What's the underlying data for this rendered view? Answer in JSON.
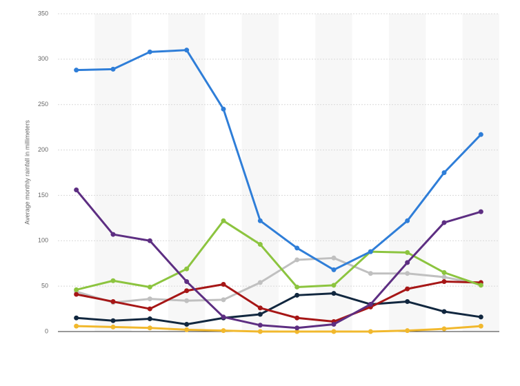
{
  "chart_data": {
    "type": "line",
    "y_label": "Average monthly rainfall in millimeters",
    "categories": [
      null,
      null,
      null,
      null,
      null,
      null,
      null,
      null,
      null,
      null,
      null,
      null
    ],
    "ylim": [
      0,
      350
    ],
    "yticks": [
      0,
      50,
      100,
      150,
      200,
      250,
      300,
      350
    ],
    "grid": true,
    "series": [
      {
        "color": "#f1b82d",
        "values": [
          6,
          5,
          4,
          2,
          1,
          0,
          0,
          0,
          0,
          1,
          3,
          6
        ]
      },
      {
        "color": "#c0c0c0",
        "values": [
          44,
          32,
          36,
          34,
          35,
          54,
          79,
          81,
          64,
          64,
          60,
          52
        ]
      },
      {
        "color": "#11273f",
        "values": [
          15,
          12,
          14,
          8,
          15,
          19,
          40,
          42,
          30,
          33,
          22,
          16
        ]
      },
      {
        "color": "#a61616",
        "values": [
          41,
          33,
          25,
          45,
          52,
          26,
          15,
          11,
          27,
          47,
          55,
          54
        ]
      },
      {
        "color": "#8cc43f",
        "values": [
          46,
          56,
          49,
          69,
          122,
          96,
          49,
          51,
          88,
          87,
          65,
          51
        ]
      },
      {
        "color": "#5d2e82",
        "values": [
          156,
          107,
          100,
          55,
          16,
          7,
          4,
          8,
          30,
          76,
          120,
          132
        ]
      },
      {
        "color": "#2f7ed8",
        "values": [
          288,
          289,
          308,
          310,
          245,
          122,
          92,
          68,
          88,
          122,
          175,
          217
        ]
      }
    ]
  }
}
